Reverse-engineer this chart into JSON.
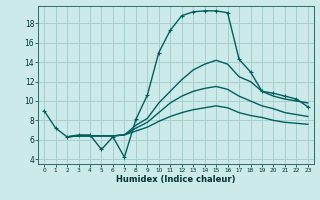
{
  "xlabel": "Humidex (Indice chaleur)",
  "xlim": [
    -0.5,
    23.5
  ],
  "ylim": [
    3.5,
    19.8
  ],
  "xticks": [
    0,
    1,
    2,
    3,
    4,
    5,
    6,
    7,
    8,
    9,
    10,
    11,
    12,
    13,
    14,
    15,
    16,
    17,
    18,
    19,
    20,
    21,
    22,
    23
  ],
  "yticks": [
    4,
    6,
    8,
    10,
    12,
    14,
    16,
    18
  ],
  "bg_color": "#cceaea",
  "grid_color": "#aacece",
  "line_color": "#006060",
  "lines": [
    {
      "x": [
        0,
        1,
        2,
        3,
        4,
        5,
        6,
        7,
        8,
        9,
        10,
        11,
        12,
        13,
        14,
        15,
        16,
        17,
        18,
        19,
        20,
        21,
        22,
        23
      ],
      "y": [
        9.0,
        7.2,
        6.3,
        6.5,
        6.5,
        5.0,
        6.3,
        4.2,
        8.1,
        10.6,
        15.0,
        17.3,
        18.8,
        19.2,
        19.3,
        19.3,
        19.1,
        14.3,
        13.0,
        11.0,
        10.8,
        10.5,
        10.2,
        9.4
      ],
      "marker": true,
      "lw": 1.0
    },
    {
      "x": [
        2,
        3,
        4,
        5,
        6,
        7,
        8,
        9,
        10,
        11,
        12,
        13,
        14,
        15,
        16,
        17,
        18,
        19,
        20,
        21,
        22,
        23
      ],
      "y": [
        6.3,
        6.4,
        6.4,
        6.4,
        6.4,
        6.5,
        7.5,
        8.2,
        9.8,
        11.0,
        12.2,
        13.2,
        13.8,
        14.2,
        13.8,
        12.5,
        12.0,
        11.0,
        10.5,
        10.2,
        10.0,
        9.8
      ],
      "marker": false,
      "lw": 1.0
    },
    {
      "x": [
        2,
        3,
        4,
        5,
        6,
        7,
        8,
        9,
        10,
        11,
        12,
        13,
        14,
        15,
        16,
        17,
        18,
        19,
        20,
        21,
        22,
        23
      ],
      "y": [
        6.3,
        6.4,
        6.4,
        6.4,
        6.4,
        6.5,
        7.2,
        7.8,
        8.8,
        9.8,
        10.5,
        11.0,
        11.3,
        11.5,
        11.2,
        10.5,
        10.0,
        9.5,
        9.2,
        8.8,
        8.6,
        8.4
      ],
      "marker": false,
      "lw": 1.0
    },
    {
      "x": [
        2,
        3,
        4,
        5,
        6,
        7,
        8,
        9,
        10,
        11,
        12,
        13,
        14,
        15,
        16,
        17,
        18,
        19,
        20,
        21,
        22,
        23
      ],
      "y": [
        6.3,
        6.4,
        6.4,
        6.4,
        6.4,
        6.5,
        6.9,
        7.3,
        7.9,
        8.4,
        8.8,
        9.1,
        9.3,
        9.5,
        9.3,
        8.8,
        8.5,
        8.3,
        8.0,
        7.8,
        7.7,
        7.6
      ],
      "marker": false,
      "lw": 1.0
    }
  ]
}
